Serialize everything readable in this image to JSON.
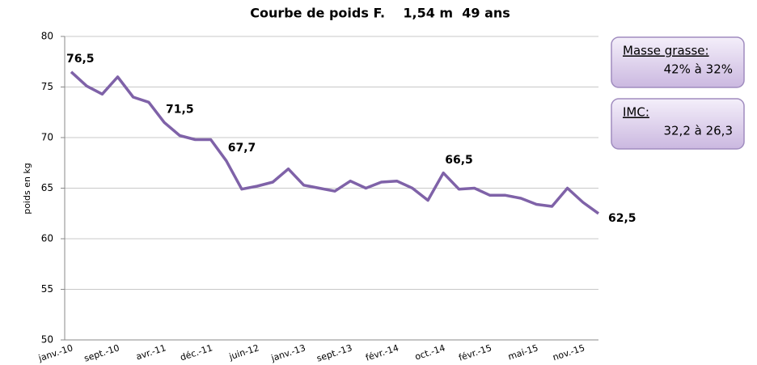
{
  "chart_data": {
    "type": "line",
    "title": "Courbe de poids F.    1,54 m  49 ans",
    "y_label": "poids en kg",
    "categories": [
      "janv.-10",
      null,
      null,
      "sept.-10",
      null,
      null,
      "avr.-11",
      null,
      null,
      "déc.-11",
      null,
      null,
      "juin-12",
      null,
      null,
      "janv.-13",
      null,
      null,
      "sept.-13",
      null,
      null,
      "févr.-14",
      null,
      null,
      "oct.-14",
      null,
      null,
      "févr.-15",
      null,
      null,
      "mai-15",
      null,
      null,
      "nov.-15",
      null
    ],
    "values": [
      76.5,
      75.1,
      74.3,
      76.0,
      74.0,
      73.5,
      71.5,
      70.2,
      69.8,
      69.8,
      67.7,
      64.9,
      65.2,
      65.6,
      66.9,
      65.3,
      65.0,
      64.7,
      65.7,
      65.0,
      65.6,
      65.7,
      65.0,
      63.8,
      66.5,
      64.9,
      65.0,
      64.3,
      64.3,
      64.0,
      63.4,
      63.2,
      65.0,
      63.6,
      62.5
    ],
    "value_labels": [
      "76,5",
      null,
      null,
      null,
      null,
      null,
      "71,5",
      null,
      null,
      null,
      "67,7",
      null,
      null,
      null,
      null,
      null,
      null,
      null,
      null,
      null,
      null,
      null,
      null,
      null,
      "66,5",
      null,
      null,
      null,
      null,
      null,
      null,
      null,
      null,
      null,
      "62,5"
    ],
    "color": "#7f62a8",
    "ylim": [
      50,
      80
    ],
    "yticks": [
      50,
      55,
      60,
      65,
      70,
      75,
      80
    ],
    "grid": true,
    "annotations": [
      {
        "title": "Masse grasse:",
        "text": "42% à 32%"
      },
      {
        "title": "IMC:",
        "text": "32,2 à 26,3"
      }
    ]
  }
}
